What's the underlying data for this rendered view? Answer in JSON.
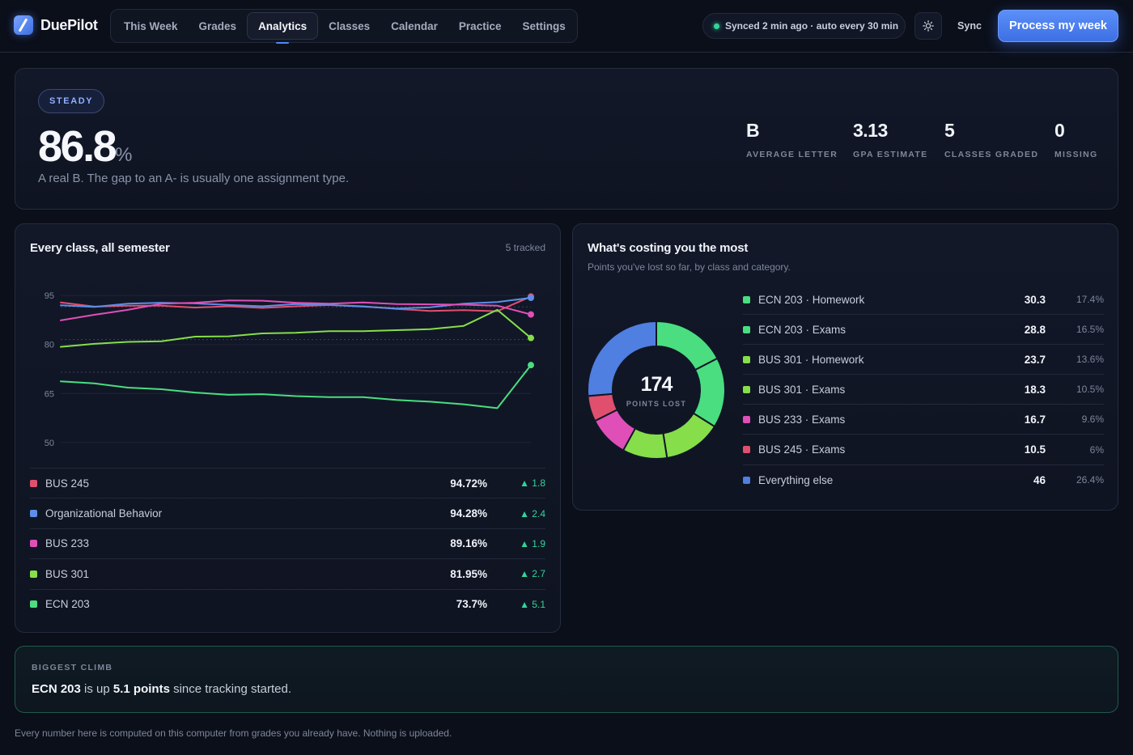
{
  "brand": {
    "name": "DuePilot"
  },
  "nav": {
    "tabs": [
      {
        "label": "This Week",
        "active": false
      },
      {
        "label": "Grades",
        "active": false
      },
      {
        "label": "Analytics",
        "active": true
      },
      {
        "label": "Classes",
        "active": false
      },
      {
        "label": "Calendar",
        "active": false
      },
      {
        "label": "Practice",
        "active": false
      },
      {
        "label": "Settings",
        "active": false
      }
    ]
  },
  "header": {
    "sync_status": "Synced 2 min ago · auto every 30 min",
    "settings_icon": "sun-gear-icon",
    "sync_label": "Sync",
    "process_label": "Process my week"
  },
  "hero": {
    "badge": "STEADY",
    "percent": "86.8",
    "percent_sign": "%",
    "subtitle": "A real B. The gap to an A- is usually one assignment type.",
    "stats": [
      {
        "value": "B",
        "label": "AVERAGE LETTER"
      },
      {
        "value": "3.13",
        "label": "GPA ESTIMATE"
      },
      {
        "value": "5",
        "label": "CLASSES GRADED"
      },
      {
        "value": "0",
        "label": "MISSING"
      }
    ]
  },
  "trend": {
    "title": "Every class, all semester",
    "meta": "5 tracked",
    "classes": [
      {
        "name": "BUS 245",
        "grade": "94.72%",
        "delta": "▲ 1.8",
        "color": "#e0506e"
      },
      {
        "name": "Organizational Behavior",
        "grade": "94.28%",
        "delta": "▲ 2.4",
        "color": "#5b8fe8"
      },
      {
        "name": "BUS 233",
        "grade": "89.16%",
        "delta": "▲ 1.9",
        "color": "#e04fb8"
      },
      {
        "name": "BUS 301",
        "grade": "81.95%",
        "delta": "▲ 2.7",
        "color": "#86de4a"
      },
      {
        "name": "ECN 203",
        "grade": "73.7%",
        "delta": "▲ 5.1",
        "color": "#4ade80"
      }
    ]
  },
  "chart_data": {
    "type": "line",
    "ylim": [
      45,
      100
    ],
    "yticks": [
      95,
      80,
      65,
      50
    ],
    "reference_lines": [
      91.5,
      81.5,
      71.5
    ],
    "series": [
      {
        "name": "BUS 245",
        "color": "#e0506e",
        "values": [
          92.9,
          91.6,
          91.9,
          91.9,
          91.3,
          91.7,
          91.2,
          91.7,
          92.1,
          91.7,
          90.9,
          90.3,
          90.5,
          90.2,
          94.7
        ]
      },
      {
        "name": "Organizational Behavior",
        "color": "#5b8fe8",
        "values": [
          92.0,
          91.5,
          92.5,
          92.8,
          92.6,
          92.1,
          91.7,
          92.4,
          92.1,
          91.6,
          91.0,
          91.4,
          92.5,
          93.0,
          94.3
        ]
      },
      {
        "name": "BUS 233",
        "color": "#e04fb8",
        "values": [
          87.4,
          89.1,
          90.6,
          92.5,
          92.8,
          93.5,
          93.4,
          92.8,
          92.5,
          92.9,
          92.4,
          92.3,
          92.2,
          91.9,
          89.2
        ]
      },
      {
        "name": "BUS 301",
        "color": "#86de4a",
        "values": [
          79.3,
          80.2,
          80.8,
          81.0,
          82.4,
          82.5,
          83.4,
          83.6,
          84.1,
          84.1,
          84.4,
          84.7,
          85.7,
          90.6,
          82.0
        ]
      },
      {
        "name": "ECN 203",
        "color": "#4ade80",
        "values": [
          68.7,
          68.1,
          66.8,
          66.3,
          65.3,
          64.6,
          64.8,
          64.2,
          63.9,
          63.9,
          63.0,
          62.5,
          61.7,
          60.5,
          73.7
        ]
      }
    ]
  },
  "cost": {
    "title": "What's costing you the most",
    "subtitle": "Points you've lost so far, by class and category.",
    "total": "174",
    "total_label": "POINTS LOST",
    "items": [
      {
        "name": "ECN 203 · Homework",
        "value": "30.3",
        "pct": "17.4%",
        "color": "#4ade80",
        "amount": 30.3
      },
      {
        "name": "ECN 203 · Exams",
        "value": "28.8",
        "pct": "16.5%",
        "color": "#4ade80",
        "amount": 28.8
      },
      {
        "name": "BUS 301 · Homework",
        "value": "23.7",
        "pct": "13.6%",
        "color": "#86de4a",
        "amount": 23.7
      },
      {
        "name": "BUS 301 · Exams",
        "value": "18.3",
        "pct": "10.5%",
        "color": "#86de4a",
        "amount": 18.3
      },
      {
        "name": "BUS 233 · Exams",
        "value": "16.7",
        "pct": "9.6%",
        "color": "#e04fb8",
        "amount": 16.7
      },
      {
        "name": "BUS 245 · Exams",
        "value": "10.5",
        "pct": "6%",
        "color": "#e0506e",
        "amount": 10.5
      },
      {
        "name": "Everything else",
        "value": "46",
        "pct": "26.4%",
        "color": "#4f7fe0",
        "amount": 46
      }
    ]
  },
  "climb": {
    "kicker": "BIGGEST CLIMB",
    "class": "ECN 203",
    "mid": " is up ",
    "amount": "5.1 points",
    "tail": " since tracking started."
  },
  "footer": {
    "note": "Every number here is computed on this computer from grades you already have. Nothing is uploaded."
  }
}
